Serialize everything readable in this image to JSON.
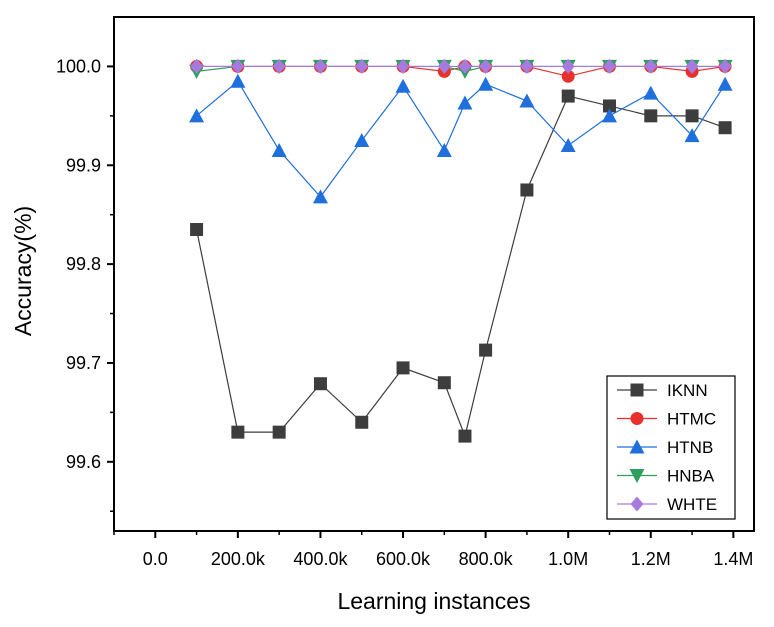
{
  "chart_data": {
    "type": "line",
    "title": "",
    "xlabel": "Learning instances",
    "ylabel": "Accuracy(%)",
    "xlim": [
      -100000,
      1450000
    ],
    "ylim": [
      99.53,
      100.05
    ],
    "x_ticks": [
      0,
      200000,
      400000,
      600000,
      800000,
      1000000,
      1200000,
      1400000
    ],
    "x_tick_labels": [
      "0.0",
      "200.0k",
      "400.0k",
      "600.0k",
      "800.0k",
      "1.0M",
      "1.2M",
      "1.4M"
    ],
    "y_ticks": [
      99.6,
      99.7,
      99.8,
      99.9,
      100.0
    ],
    "y_tick_labels": [
      "99.6",
      "99.7",
      "99.8",
      "99.9",
      "100.0"
    ],
    "x": [
      100000,
      200000,
      300000,
      400000,
      500000,
      600000,
      700000,
      750000,
      800000,
      900000,
      1000000,
      1100000,
      1200000,
      1300000,
      1380000
    ],
    "legend_position": "bottom-right",
    "series": [
      {
        "name": "IKNN",
        "color": "#3d3d3d",
        "marker": "square",
        "values": [
          99.835,
          99.63,
          99.63,
          99.679,
          99.64,
          99.695,
          99.68,
          99.626,
          99.713,
          99.875,
          99.97,
          99.96,
          99.95,
          99.95,
          99.938
        ]
      },
      {
        "name": "HTMC",
        "color": "#e8312a",
        "marker": "circle",
        "values": [
          100.0,
          100.0,
          100.0,
          100.0,
          100.0,
          100.0,
          99.995,
          100.0,
          100.0,
          100.0,
          99.99,
          100.0,
          100.0,
          99.995,
          100.0
        ]
      },
      {
        "name": "HTNB",
        "color": "#1f6fdc",
        "marker": "triangle-up",
        "values": [
          99.95,
          99.985,
          99.915,
          99.868,
          99.925,
          99.98,
          99.915,
          99.963,
          99.982,
          99.965,
          99.92,
          99.95,
          99.973,
          99.93,
          99.982
        ]
      },
      {
        "name": "HNBA",
        "color": "#2e9f5d",
        "marker": "triangle-down",
        "values": [
          99.995,
          100.0,
          100.0,
          100.0,
          100.0,
          100.0,
          100.0,
          99.995,
          100.0,
          100.0,
          100.0,
          100.0,
          100.0,
          100.0,
          100.0
        ]
      },
      {
        "name": "WHTE",
        "color": "#a77ae0",
        "marker": "diamond",
        "values": [
          100.0,
          100.0,
          100.0,
          100.0,
          100.0,
          100.0,
          100.0,
          100.0,
          100.0,
          100.0,
          100.0,
          100.0,
          100.0,
          100.0,
          100.0
        ]
      }
    ]
  }
}
